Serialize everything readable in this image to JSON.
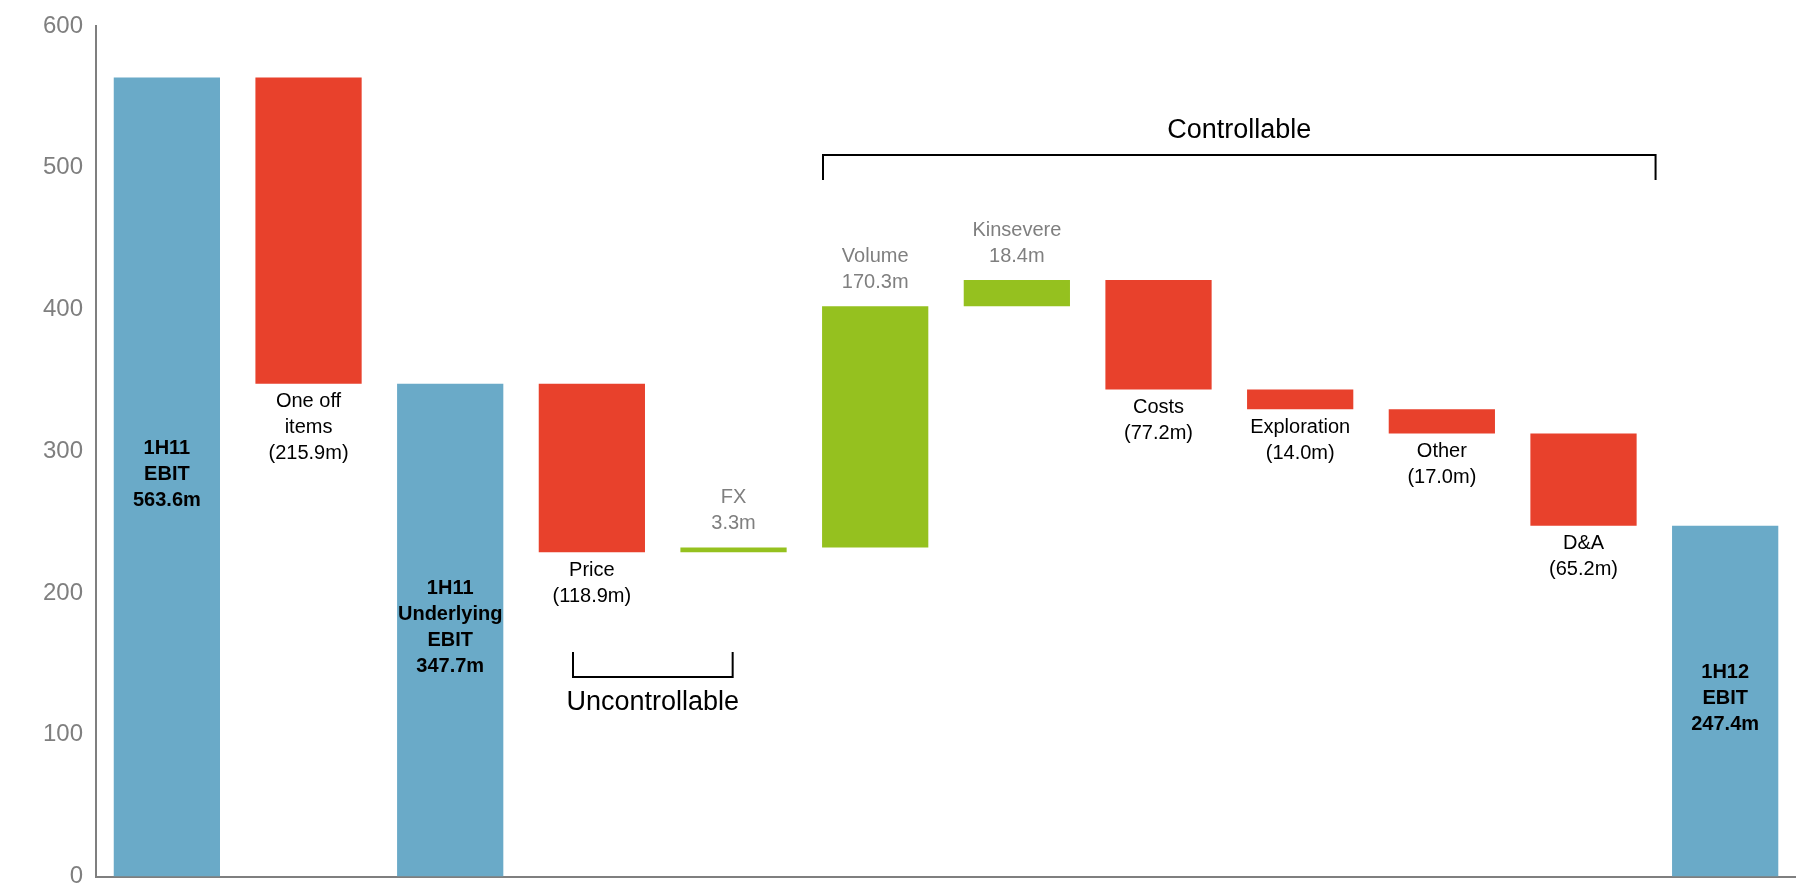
{
  "chart_data": {
    "type": "bar",
    "categories": [
      "1H11\nEBIT",
      "One off\nitems",
      "1H11\nUnderlying\nEBIT",
      "Price",
      "FX",
      "Volume",
      "Kinsevere",
      "Costs",
      "Exploration",
      "Other",
      "D&A",
      "1H12\nEBIT"
    ],
    "base": [
      0,
      563.6,
      0,
      347.7,
      228.8,
      232.1,
      402.4,
      420.8,
      343.6,
      329.6,
      312.6,
      0
    ],
    "values": [
      563.6,
      -215.9,
      347.7,
      -118.9,
      3.3,
      170.3,
      18.4,
      -77.2,
      -14.0,
      -17.0,
      -65.2,
      247.4
    ],
    "colors": [
      "#6aaac8",
      "#e8412c",
      "#6aaac8",
      "#e8412c",
      "#95c11f",
      "#95c11f",
      "#95c11f",
      "#e8412c",
      "#e8412c",
      "#e8412c",
      "#e8412c",
      "#6aaac8"
    ],
    "value_labels": [
      "563.6m",
      "(215.9m)",
      "347.7m",
      "(118.9m)",
      "3.3m",
      "170.3m",
      "18.4m",
      "(77.2m)",
      "(14.0m)",
      "(17.0m)",
      "(65.2m)",
      "247.4m"
    ],
    "annotations": [
      "Controllable",
      "Uncontrollable"
    ],
    "ylim": [
      0,
      600
    ],
    "yticks": [
      0,
      100,
      200,
      300,
      400,
      500,
      600
    ],
    "grid": false,
    "legend": false
  }
}
